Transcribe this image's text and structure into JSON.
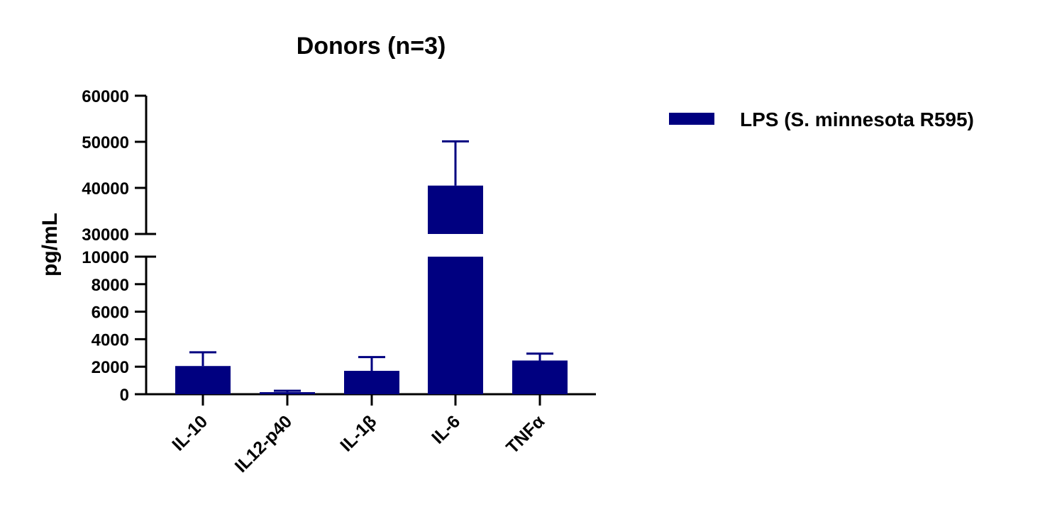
{
  "chart_data": {
    "type": "bar",
    "title": "Donors (n=3)",
    "xlabel": "",
    "ylabel": "pg/mL",
    "categories": [
      "IL-10",
      "IL12-p40",
      "IL-1β",
      "IL-6",
      "TNFα"
    ],
    "series": [
      {
        "name": "LPS (S. minnesota R595)",
        "color": "#000080",
        "values": [
          2050,
          150,
          1700,
          40500,
          2450
        ],
        "error_upper": [
          3050,
          250,
          2700,
          50100,
          2950
        ]
      }
    ],
    "y_axis_broken": true,
    "ylim_lower_segment": [
      0,
      10000
    ],
    "ylim_upper_segment": [
      30000,
      60000
    ],
    "yticks_lower": [
      "0",
      "2000",
      "4000",
      "6000",
      "8000",
      "10000"
    ],
    "yticks_upper": [
      "30000",
      "40000",
      "50000",
      "60000"
    ],
    "grid": false,
    "legend_position": "right"
  }
}
